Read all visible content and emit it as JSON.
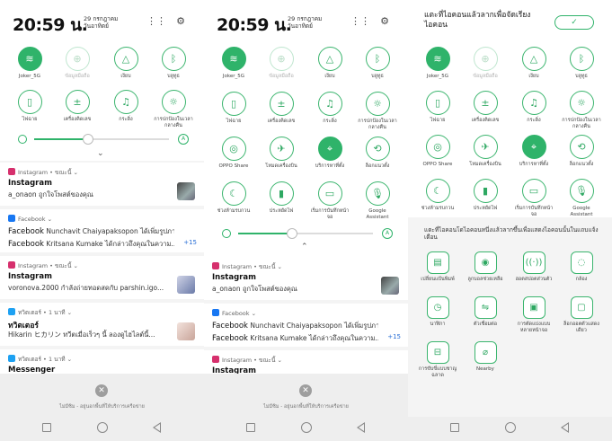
{
  "time": "20:59 น.",
  "date": "29 กรกฎาคม\nวันอาทิตย์",
  "quick_tiles": [
    {
      "label": "Joker_5G",
      "icon": "wifi-icon",
      "state": "on"
    },
    {
      "label": "ข้อมูลมือถือ",
      "icon": "globe-icon",
      "state": "off"
    },
    {
      "label": "เงียบ",
      "icon": "bell-off-icon",
      "state": "normal"
    },
    {
      "label": "บลูทูธ",
      "icon": "bluetooth-icon",
      "state": "normal"
    },
    {
      "label": "ไฟฉาย",
      "icon": "flashlight-icon",
      "state": "normal"
    },
    {
      "label": "เครื่องคิดเลข",
      "icon": "calculator-icon",
      "state": "normal"
    },
    {
      "label": "กระดิ่ง",
      "icon": "bell-icon",
      "state": "normal"
    },
    {
      "label": "การปกป้องในเวลากลางคืน",
      "icon": "night-light-icon",
      "state": "normal"
    },
    {
      "label": "OPPO Share",
      "icon": "oppo-share-icon",
      "state": "normal"
    },
    {
      "label": "โหมดเครื่องบิน",
      "icon": "airplane-icon",
      "state": "normal"
    },
    {
      "label": "บริการหาที่ตั้ง",
      "icon": "location-icon",
      "state": "on"
    },
    {
      "label": "ล็อกแนวตั้ง",
      "icon": "rotation-lock-icon",
      "state": "normal"
    },
    {
      "label": "ช่วงห้ามรบกวน",
      "icon": "moon-icon",
      "state": "normal"
    },
    {
      "label": "ประหยัดไฟ",
      "icon": "battery-icon",
      "state": "normal"
    },
    {
      "label": "เริ่มการบันทึกหน้าจอ",
      "icon": "screen-record-icon",
      "state": "normal"
    },
    {
      "label": "Google Assistant",
      "icon": "microphone-icon",
      "state": "normal"
    }
  ],
  "notifications_left": [
    {
      "app": "Instagram • ขณะนี้",
      "type": "ig",
      "title": "Instagram",
      "text": "a_onaon ถูกใจโพสต์ของคุณ",
      "avatar": "av1"
    },
    {
      "app": "Facebook",
      "type": "fb",
      "lines": [
        {
          "bold": "Facebook",
          "rest": " Nunchavit Chaiyapaksopon ได้เพิ่มรูปภาพใหม่"
        },
        {
          "bold": "Facebook",
          "rest": " Kritsana Kumake ได้กล่าวถึงคุณในความ..."
        }
      ],
      "more": "+15"
    },
    {
      "app": "Instagram • ขณะนี้",
      "type": "ig",
      "title": "Instagram",
      "text": "voronova.2000 กำลังถ่ายทอดสดกับ parshin.igo...",
      "avatar": "av2"
    },
    {
      "app": "ทวิตเตอร์ • 1 นาที",
      "type": "tw",
      "title": "ทวิตเตอร์",
      "text": "Hikarin ヒカリン ทวีตเมื่อเร็วๆ นี้ ลองดูไฮไลต์นี้...",
      "avatar": "av3"
    },
    {
      "app": "ทวิตเตอร์ • 1 นาที",
      "type": "tw",
      "title": "Messenger",
      "text": ""
    }
  ],
  "notifications_mid": [
    {
      "app": "Instagram • ขณะนี้",
      "type": "ig",
      "title": "Instagram",
      "text": "a_onaon ถูกใจโพสต์ของคุณ",
      "avatar": "av1"
    },
    {
      "app": "Facebook",
      "type": "fb",
      "lines": [
        {
          "bold": "Facebook",
          "rest": " Nunchavit Chaiyapaksopon ได้เพิ่มรูปภาพใหม่"
        },
        {
          "bold": "Facebook",
          "rest": " Kritsana Kumake ได้กล่าวถึงคุณในความ..."
        }
      ],
      "more": "+15"
    },
    {
      "app": "Instagram • ขณะนี้",
      "type": "ig",
      "title": "Instagram",
      "text": ""
    }
  ],
  "dismiss_text": "ไม่มีซิม - อยู่นอกพื้นที่ให้บริการเครือข่าย",
  "edit": {
    "title": "แตะที่ไอคอนแล้วลากเพื่อจัดเรียงไอคอน",
    "done": "✓",
    "hint": "แตะที่ไอคอนโดไอคอนหนึ่งแล้วลากขึ้นเพื่อแสดงไอคอนนั้นในแถบแจ้งเตือน",
    "extra_tiles": [
      {
        "label": "เปลี่ยนแป้นพิมพ์",
        "icon": "keyboard-icon"
      },
      {
        "label": "ลูกบอลช่วยเหลือ",
        "icon": "assist-ball-icon"
      },
      {
        "label": "ฮอตสปอตส่วนตัว",
        "icon": "hotspot-icon"
      },
      {
        "label": "กล้อง",
        "icon": "camera-icon"
      },
      {
        "label": "นาฬิกา",
        "icon": "clock-icon"
      },
      {
        "label": "ตัวเชื่อมต่อ",
        "icon": "connect-icon"
      },
      {
        "label": "การตัดแบ่งแบบหลายหน้าจอ",
        "icon": "split-screen-icon"
      },
      {
        "label": "ล็อกออตตัวแสดงเดียว",
        "icon": "lock-icon"
      },
      {
        "label": "การขับขี่แบบชาญฉลาด",
        "icon": "car-icon"
      },
      {
        "label": "Nearby",
        "icon": "nearby-icon"
      }
    ]
  },
  "colors": {
    "accent": "#2fb36a",
    "instagram": "#d6306d",
    "facebook": "#1877f2",
    "twitter": "#1da1f2"
  },
  "brightness": 0.4,
  "auto_label": "A"
}
